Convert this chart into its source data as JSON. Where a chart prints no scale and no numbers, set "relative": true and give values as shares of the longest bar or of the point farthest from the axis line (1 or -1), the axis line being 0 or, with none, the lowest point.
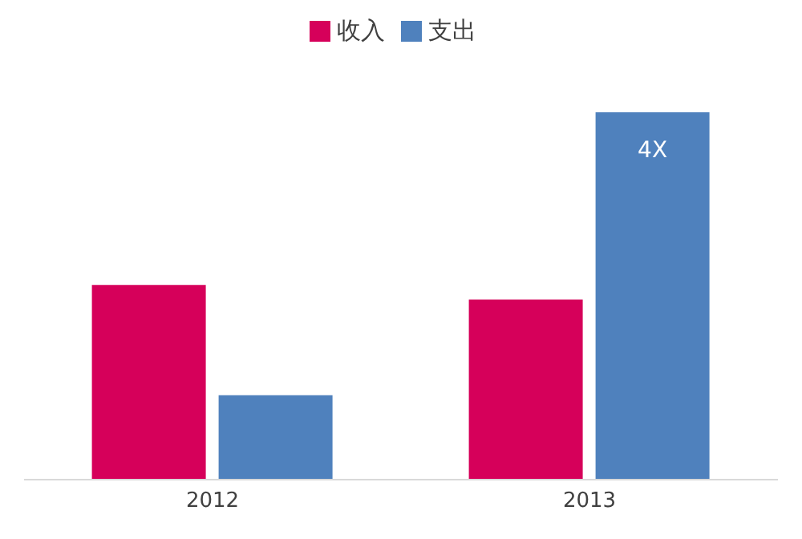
{
  "chart_data": {
    "type": "bar",
    "relative": true,
    "categories": [
      "2012",
      "2013"
    ],
    "series": [
      {
        "name": "收入",
        "color": "#d6005a",
        "values": [
          0.53,
          0.49
        ]
      },
      {
        "name": "支出",
        "color": "#4f81bd",
        "values": [
          0.23,
          1
        ]
      }
    ],
    "annotations": [
      {
        "text": "4X",
        "x": "2013",
        "y": 1
      }
    ],
    "legend": "top"
  }
}
